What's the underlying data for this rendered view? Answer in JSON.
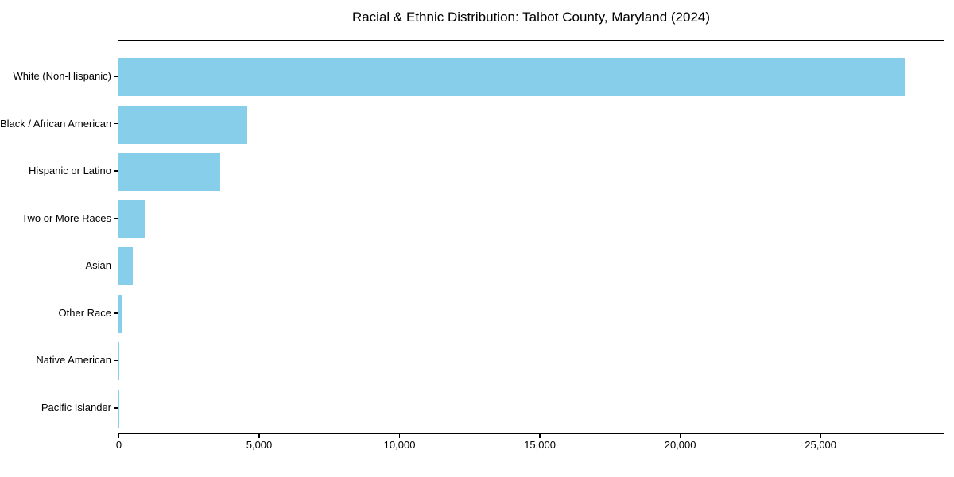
{
  "figure": {
    "background": "#ffffff"
  },
  "chart_data": {
    "type": "bar",
    "orientation": "horizontal",
    "title": "Racial & Ethnic Distribution: Talbot County, Maryland (2024)",
    "xlabel": "",
    "ylabel": "",
    "categories": [
      "White (Non-Hispanic)",
      "Black / African American",
      "Hispanic or Latino",
      "Two or More Races",
      "Asian",
      "Other Race",
      "Native American",
      "Pacific Islander"
    ],
    "values": [
      28000,
      4600,
      3630,
      940,
      510,
      120,
      25,
      10
    ],
    "xlim": [
      0,
      29400
    ],
    "x_ticks": [
      0,
      5000,
      10000,
      15000,
      20000,
      25000
    ],
    "x_tick_labels": [
      "0",
      "5,000",
      "10,000",
      "15,000",
      "20,000",
      "25,000"
    ],
    "bar_color": "#87CEEB",
    "axis_color": "#000000",
    "text_color": "#000000",
    "grid": false,
    "legend": null
  }
}
